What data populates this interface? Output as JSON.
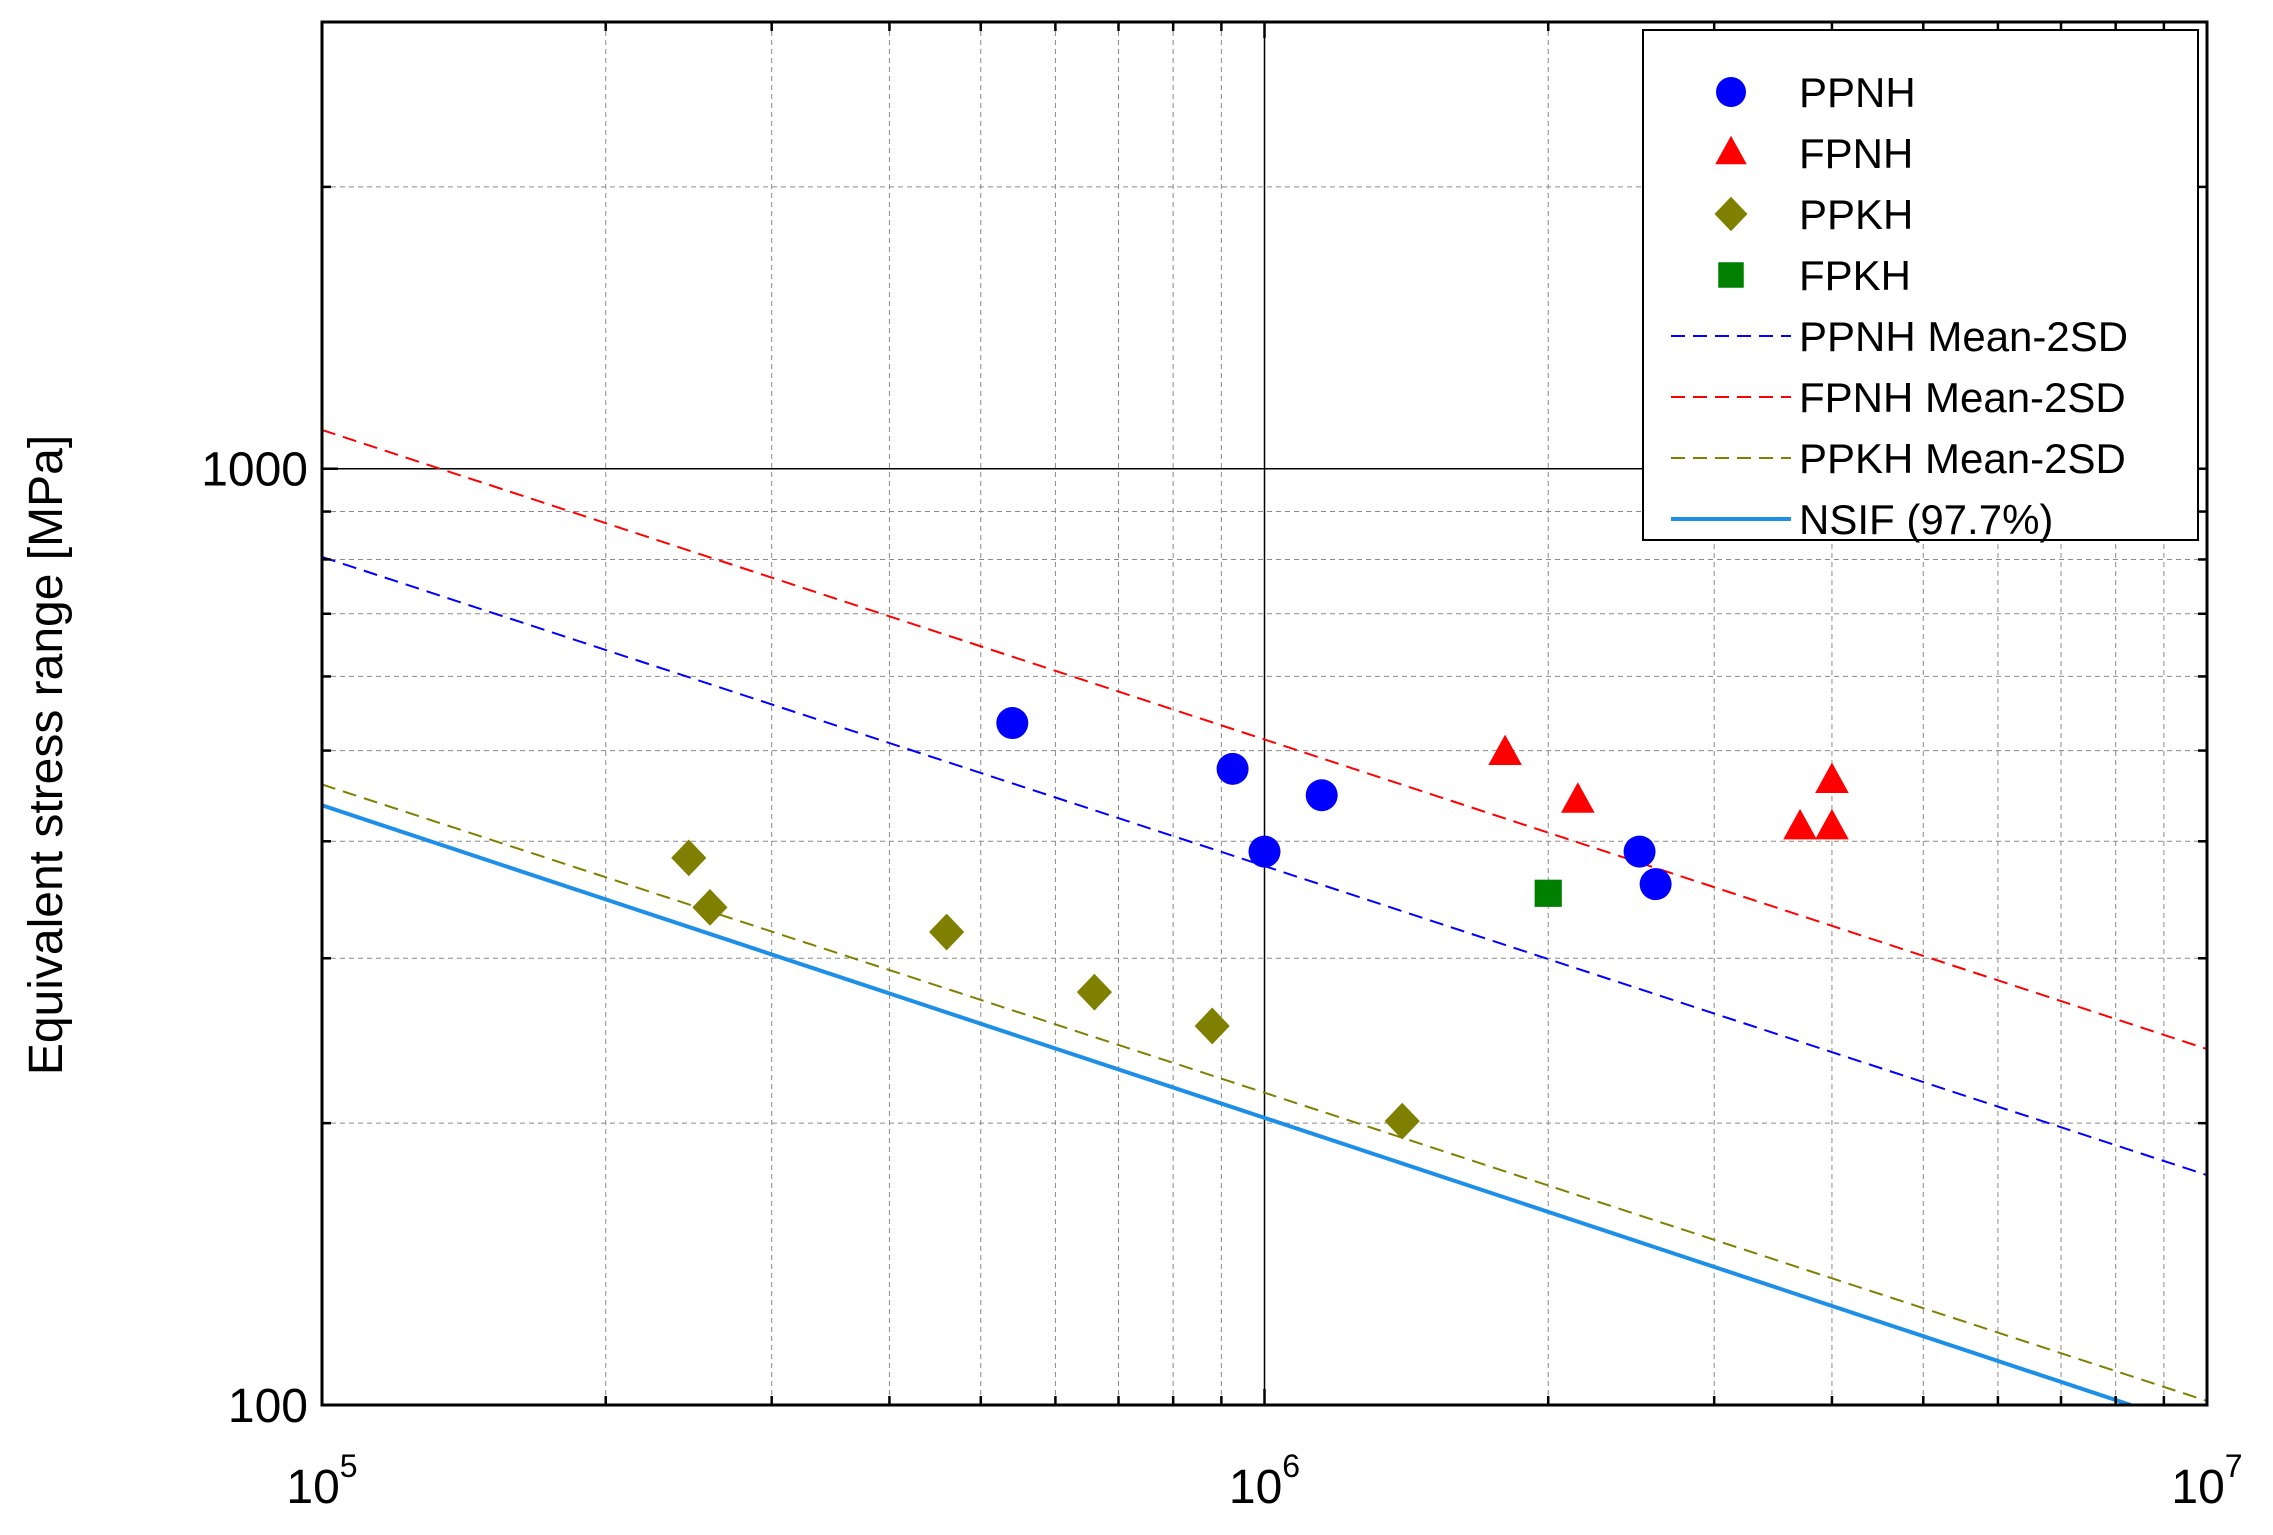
{
  "chart_data": {
    "type": "scatter",
    "x_scale": "log",
    "y_scale": "log",
    "xlim": [
      100000,
      10000000
    ],
    "ylim": [
      100,
      3000
    ],
    "xlabel": "",
    "ylabel": "Equivalent stress range [MPa]",
    "x_ticks": [
      {
        "value": 100000,
        "base": "10",
        "exp": "5"
      },
      {
        "value": 1000000,
        "base": "10",
        "exp": "6"
      },
      {
        "value": 10000000,
        "base": "10",
        "exp": "7"
      }
    ],
    "y_ticks": [
      {
        "value": 100,
        "label": "100"
      },
      {
        "value": 1000,
        "label": "1000"
      }
    ],
    "legend_position": "top-right",
    "series": [
      {
        "name": "PPNH",
        "kind": "points",
        "marker": "circle",
        "color": "#0000ff",
        "points": [
          [
            540000,
            535
          ],
          [
            925000,
            478
          ],
          [
            1150000,
            448
          ],
          [
            1000000,
            390
          ],
          [
            2500000,
            390
          ],
          [
            2600000,
            360
          ]
        ]
      },
      {
        "name": "FPNH",
        "kind": "points",
        "marker": "triangle",
        "color": "#ff0000",
        "points": [
          [
            1800000,
            497
          ],
          [
            2150000,
            442
          ],
          [
            4000000,
            464
          ],
          [
            3700000,
            414
          ],
          [
            4000000,
            414
          ]
        ]
      },
      {
        "name": "PPKH",
        "kind": "points",
        "marker": "diamond",
        "color": "#808000",
        "points": [
          [
            245000,
            384
          ],
          [
            258000,
            340
          ],
          [
            460000,
            320
          ],
          [
            660000,
            276
          ],
          [
            880000,
            254
          ],
          [
            1400000,
            201
          ]
        ]
      },
      {
        "name": "FPKH",
        "kind": "points",
        "marker": "square",
        "color": "#008000",
        "points": [
          [
            2000000,
            352
          ]
        ]
      },
      {
        "name": "PPNH Mean-2SD",
        "kind": "line",
        "style": "dashed",
        "color": "#0000ff",
        "points": [
          [
            100000,
            805
          ],
          [
            10000000,
            176
          ]
        ]
      },
      {
        "name": "FPNH Mean-2SD",
        "kind": "line",
        "style": "dashed",
        "color": "#ff0000",
        "points": [
          [
            100000,
            1100
          ],
          [
            10000000,
            240
          ]
        ]
      },
      {
        "name": "PPKH Mean-2SD",
        "kind": "line",
        "style": "dashed",
        "color": "#808000",
        "points": [
          [
            100000,
            460
          ],
          [
            10000000,
            101
          ]
        ]
      },
      {
        "name": "NSIF (97.7%)",
        "kind": "line",
        "style": "solid",
        "color": "#1e8fe6",
        "points": [
          [
            100000,
            437
          ],
          [
            8300000,
            100
          ]
        ]
      }
    ]
  }
}
